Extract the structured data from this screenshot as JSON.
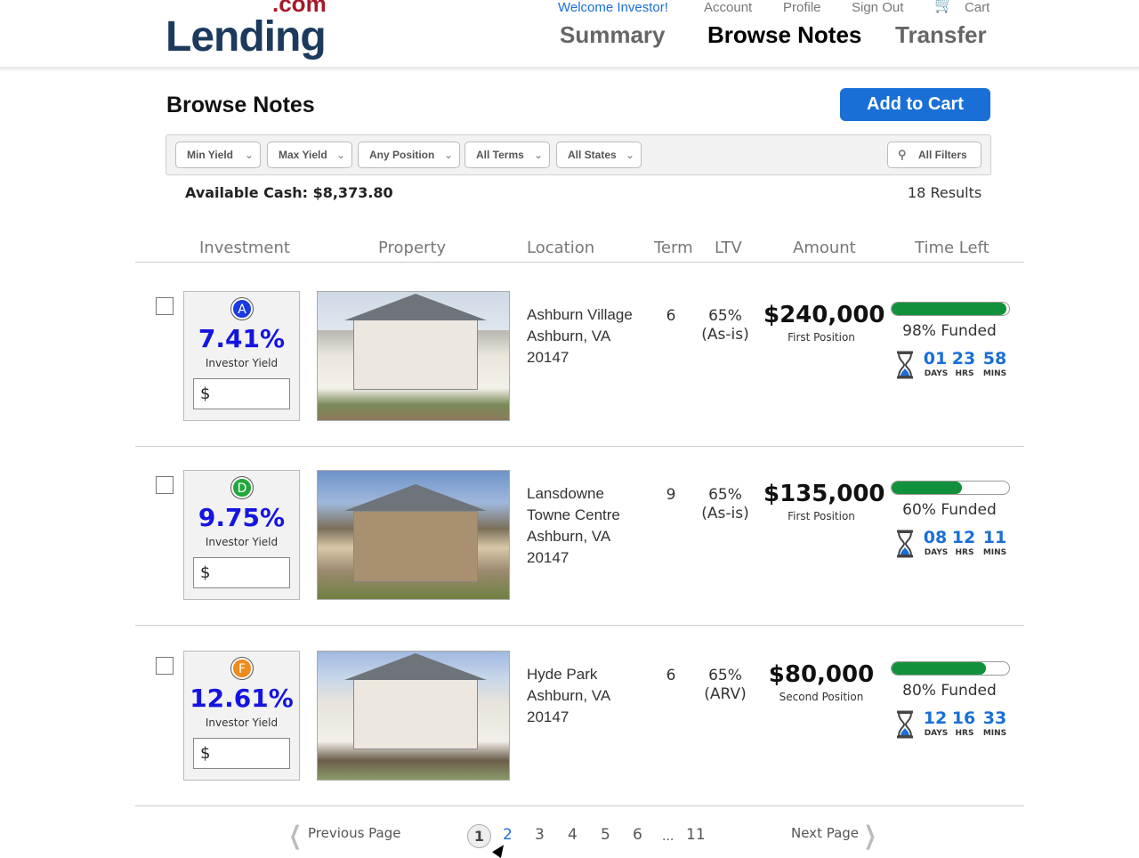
{
  "header": {
    "logo_main": "Lending",
    "logo_com": ".com",
    "welcome": "Welcome Investor!",
    "links": [
      "Account",
      "Profile",
      "Sign Out",
      "Cart"
    ],
    "nav": [
      "Summary",
      "Browse Notes",
      "Transfer"
    ],
    "active_nav": "Browse Notes"
  },
  "page": {
    "title": "Browse Notes",
    "add_to_cart": "Add to Cart",
    "available_cash": "Available Cash: $8,373.80",
    "results": "18 Results"
  },
  "filters": [
    "Min Yield",
    "Max Yield",
    "Any Position",
    "All Terms",
    "All States"
  ],
  "all_filters": "All Filters",
  "columns": [
    "Investment",
    "Property",
    "Location",
    "Term",
    "LTV",
    "Amount",
    "Time Left"
  ],
  "notes": [
    {
      "grade": "A",
      "grade_color": "#1a3be0",
      "yield": "7.41%",
      "yield_label": "Investor Yield",
      "input_prefix": "$",
      "loc": [
        "Ashburn Village",
        "Ashburn, VA",
        "20147"
      ],
      "term": "6",
      "ltv": "65%",
      "ltv_basis": "(As-is)",
      "amount": "$240,000",
      "position": "First Position",
      "funded_pct": 98,
      "funded": "98% Funded",
      "days": "01",
      "hrs": "23",
      "mins": "58"
    },
    {
      "grade": "D",
      "grade_color": "#22a83a",
      "yield": "9.75%",
      "yield_label": "Investor Yield",
      "input_prefix": "$",
      "loc": [
        "Lansdowne",
        "Towne Centre",
        "Ashburn, VA",
        "20147"
      ],
      "term": "9",
      "ltv": "65%",
      "ltv_basis": "(As-is)",
      "amount": "$135,000",
      "position": "First Position",
      "funded_pct": 60,
      "funded": "60% Funded",
      "days": "08",
      "hrs": "12",
      "mins": "11"
    },
    {
      "grade": "F",
      "grade_color": "#f08a1c",
      "yield": "12.61%",
      "yield_label": "Investor Yield",
      "input_prefix": "$",
      "loc": [
        "Hyde Park",
        "Ashburn, VA",
        "20147"
      ],
      "term": "6",
      "ltv": "65%",
      "ltv_basis": "(ARV)",
      "amount": "$80,000",
      "position": "Second Position",
      "funded_pct": 80,
      "funded": "80% Funded",
      "days": "12",
      "hrs": "16",
      "mins": "33"
    }
  ],
  "countdown_labels": {
    "days": "DAYS",
    "hrs": "HRS",
    "mins": "MINS"
  },
  "pagination": {
    "prev": "Previous Page",
    "next": "Next Page",
    "pages": [
      "1",
      "2",
      "3",
      "4",
      "5",
      "6",
      "...",
      "11"
    ],
    "current": "1"
  }
}
